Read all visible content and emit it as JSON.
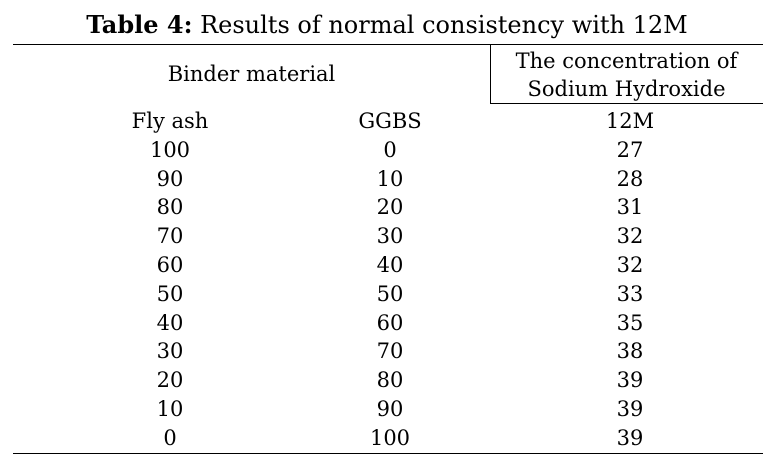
{
  "caption": {
    "label": "Table 4:",
    "text": "Results of normal consistency with 12M"
  },
  "headers": {
    "binder_material": "Binder material",
    "concentration_line1": "The concentration of",
    "concentration_line2": "Sodium Hydroxide"
  },
  "columns": [
    "Fly ash",
    "GGBS",
    "12M"
  ],
  "rows": [
    [
      "100",
      "0",
      "27"
    ],
    [
      "90",
      "10",
      "28"
    ],
    [
      "80",
      "20",
      "31"
    ],
    [
      "70",
      "30",
      "32"
    ],
    [
      "60",
      "40",
      "32"
    ],
    [
      "50",
      "50",
      "33"
    ],
    [
      "40",
      "60",
      "35"
    ],
    [
      "30",
      "70",
      "38"
    ],
    [
      "20",
      "80",
      "39"
    ],
    [
      "10",
      "90",
      "39"
    ],
    [
      "0",
      "100",
      "39"
    ]
  ]
}
